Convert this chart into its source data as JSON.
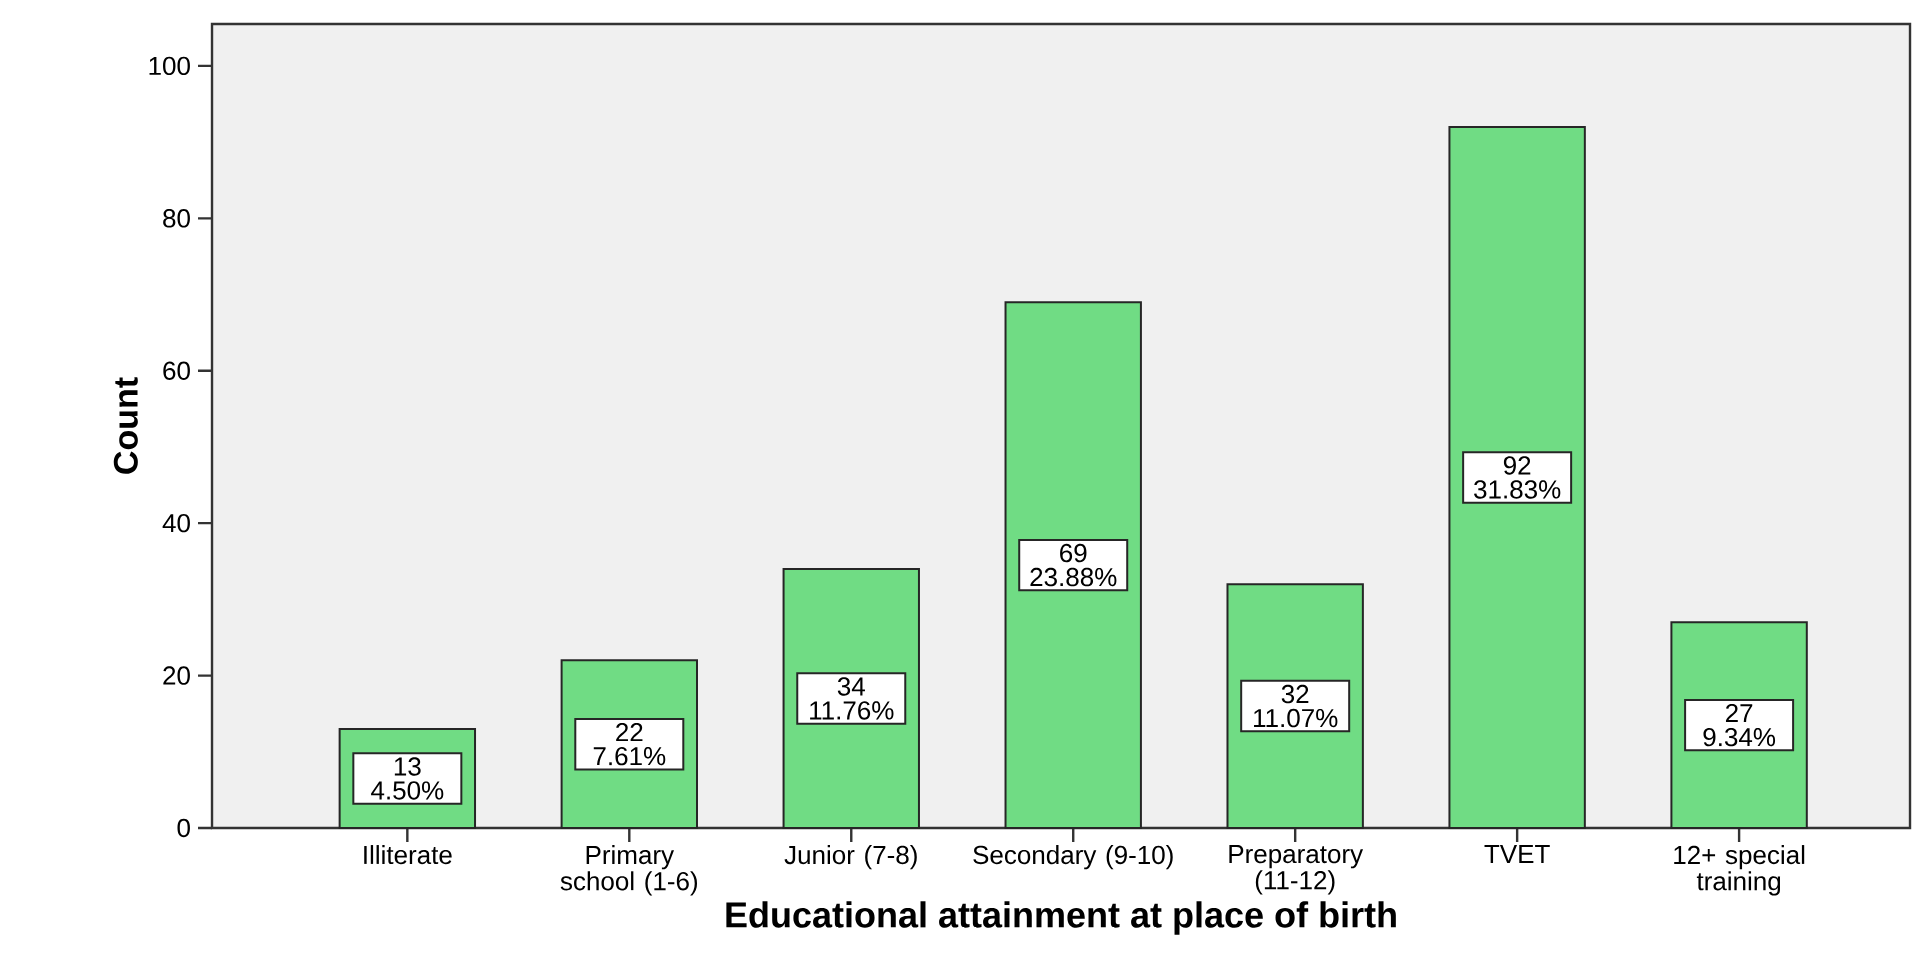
{
  "chart_data": {
    "type": "bar",
    "xlabel": "Educational attainment at place of birth",
    "ylabel": "Count",
    "categories": [
      "Illiterate",
      "Primary school (1-6)",
      "Junior (7-8)",
      "Secondary (9-10)",
      "Preparatory (11-12)",
      "TVET",
      "12+ special training"
    ],
    "values": [
      13,
      22,
      34,
      69,
      32,
      92,
      27
    ],
    "value_labels": [
      "13 4.50%",
      "22 7.61%",
      "34 11.76%",
      "69 23.88%",
      "32 11.07%",
      "92 31.83%",
      "27 9.34%"
    ],
    "color": "#70dc84",
    "ylim": [
      0,
      105.5
    ],
    "yticks": [
      0,
      20,
      40,
      60,
      80,
      100
    ]
  }
}
